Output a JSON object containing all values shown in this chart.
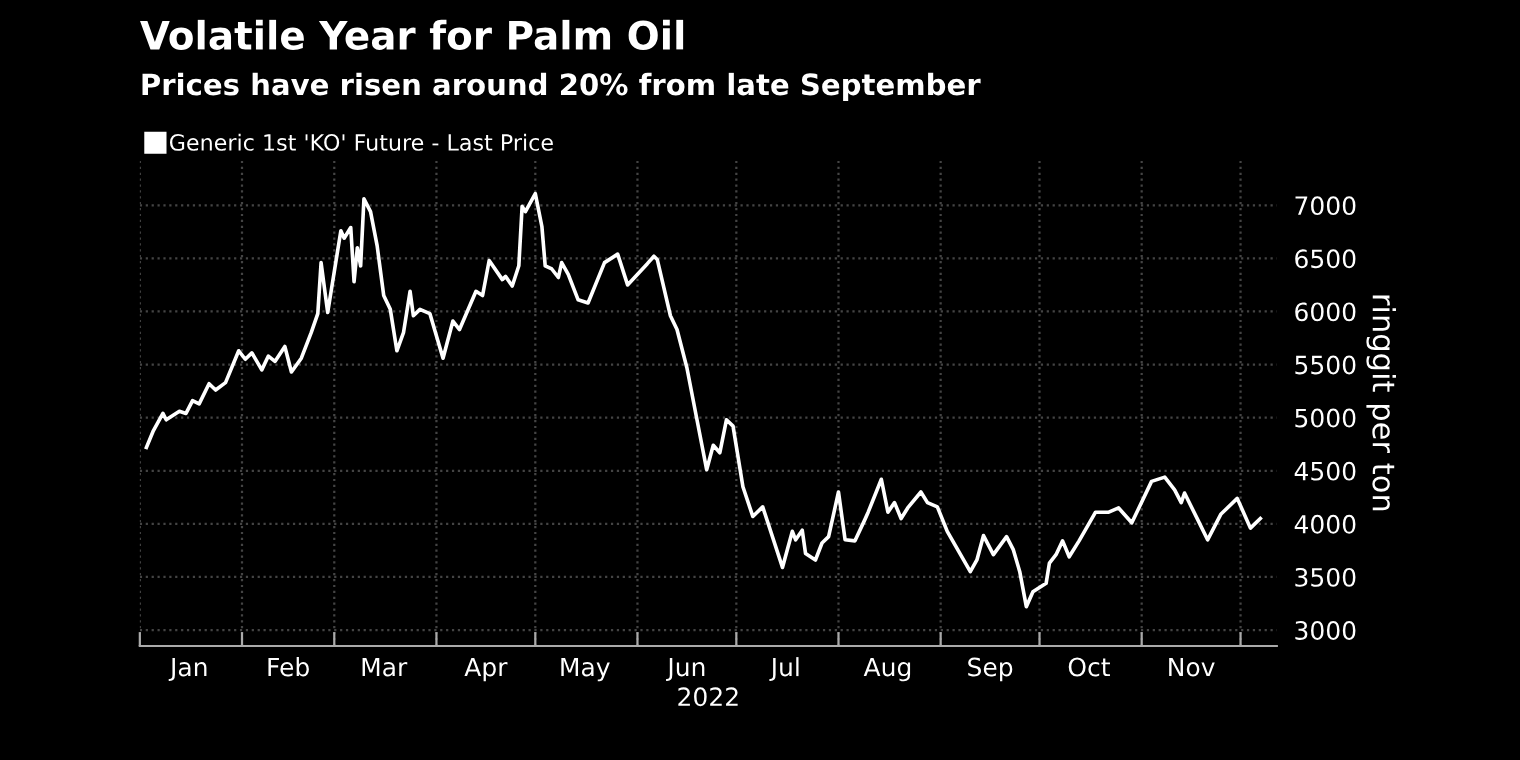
{
  "chart_data": {
    "type": "line",
    "title": "Volatile Year for Palm Oil",
    "subtitle": "Prices have risen around 20% from late September",
    "xlabel": "2022",
    "ylabel": "ringgit per ton",
    "legend": "top left",
    "grid": true,
    "marker": "none",
    "line_style": "solid",
    "xlim": [
      "2022-01-01",
      "2022-12-12"
    ],
    "ylim": [
      2850,
      7430
    ],
    "yticks": [
      3000,
      3500,
      4000,
      4500,
      5000,
      5500,
      6000,
      6500,
      7000
    ],
    "xticks": [
      {
        "value": "2022-01-01",
        "label": null
      },
      {
        "value": "2022-01-16",
        "label": "Jan"
      },
      {
        "value": "2022-02-01",
        "label": null
      },
      {
        "value": "2022-02-15",
        "label": "Feb"
      },
      {
        "value": "2022-03-01",
        "label": null
      },
      {
        "value": "2022-03-16",
        "label": "Mar"
      },
      {
        "value": "2022-04-01",
        "label": null
      },
      {
        "value": "2022-04-16",
        "label": "Apr"
      },
      {
        "value": "2022-05-01",
        "label": null
      },
      {
        "value": "2022-05-16",
        "label": "May"
      },
      {
        "value": "2022-06-01",
        "label": null
      },
      {
        "value": "2022-06-16",
        "label": "Jun"
      },
      {
        "value": "2022-07-01",
        "label": null
      },
      {
        "value": "2022-07-16",
        "label": "Jul"
      },
      {
        "value": "2022-08-01",
        "label": null
      },
      {
        "value": "2022-08-16",
        "label": "Aug"
      },
      {
        "value": "2022-09-01",
        "label": null
      },
      {
        "value": "2022-09-16",
        "label": "Sep"
      },
      {
        "value": "2022-10-01",
        "label": null
      },
      {
        "value": "2022-10-16",
        "label": "Oct"
      },
      {
        "value": "2022-11-01",
        "label": null
      },
      {
        "value": "2022-11-16",
        "label": "Nov"
      },
      {
        "value": "2022-12-01",
        "label": null
      }
    ],
    "series": [
      {
        "name": "Generic 1st 'KO' Future - Last Price",
        "color": "#ffffff",
        "x": [
          "2022-01-03",
          "2022-01-05",
          "2022-01-08",
          "2022-01-09",
          "2022-01-13",
          "2022-01-15",
          "2022-01-17",
          "2022-01-19",
          "2022-01-22",
          "2022-01-24",
          "2022-01-27",
          "2022-01-31",
          "2022-02-02",
          "2022-02-04",
          "2022-02-07",
          "2022-02-09",
          "2022-02-11",
          "2022-02-14",
          "2022-02-16",
          "2022-02-19",
          "2022-02-22",
          "2022-02-24",
          "2022-02-25",
          "2022-02-27",
          "2022-03-03",
          "2022-03-04",
          "2022-03-06",
          "2022-03-07",
          "2022-03-08",
          "2022-03-09",
          "2022-03-10",
          "2022-03-12",
          "2022-03-14",
          "2022-03-16",
          "2022-03-18",
          "2022-03-20",
          "2022-03-22",
          "2022-03-24",
          "2022-03-25",
          "2022-03-27",
          "2022-03-30",
          "2022-04-03",
          "2022-04-06",
          "2022-04-08",
          "2022-04-13",
          "2022-04-15",
          "2022-04-17",
          "2022-04-21",
          "2022-04-22",
          "2022-04-24",
          "2022-04-26",
          "2022-04-27",
          "2022-04-28",
          "2022-05-01",
          "2022-05-03",
          "2022-05-04",
          "2022-05-06",
          "2022-05-08",
          "2022-05-09",
          "2022-05-11",
          "2022-05-14",
          "2022-05-17",
          "2022-05-22",
          "2022-05-26",
          "2022-05-29",
          "2022-06-04",
          "2022-06-06",
          "2022-06-07",
          "2022-06-11",
          "2022-06-13",
          "2022-06-16",
          "2022-06-19",
          "2022-06-22",
          "2022-06-24",
          "2022-06-26",
          "2022-06-28",
          "2022-06-30",
          "2022-07-03",
          "2022-07-06",
          "2022-07-09",
          "2022-07-15",
          "2022-07-18",
          "2022-07-19",
          "2022-07-21",
          "2022-07-22",
          "2022-07-25",
          "2022-07-27",
          "2022-07-29",
          "2022-08-01",
          "2022-08-03",
          "2022-08-06",
          "2022-08-09",
          "2022-08-10",
          "2022-08-14",
          "2022-08-16",
          "2022-08-18",
          "2022-08-20",
          "2022-08-22",
          "2022-08-26",
          "2022-08-28",
          "2022-08-31",
          "2022-09-03",
          "2022-09-10",
          "2022-09-12",
          "2022-09-14",
          "2022-09-17",
          "2022-09-21",
          "2022-09-23",
          "2022-09-25",
          "2022-09-27",
          "2022-09-29",
          "2022-10-03",
          "2022-10-04",
          "2022-10-06",
          "2022-10-08",
          "2022-10-10",
          "2022-10-13",
          "2022-10-18",
          "2022-10-22",
          "2022-10-25",
          "2022-10-29",
          "2022-11-04",
          "2022-11-08",
          "2022-11-11",
          "2022-11-13",
          "2022-11-14",
          "2022-11-18",
          "2022-11-21",
          "2022-11-25",
          "2022-11-30",
          "2022-12-04",
          "2022-12-07"
        ],
        "values": [
          4720,
          4870,
          5040,
          4980,
          5060,
          5040,
          5160,
          5130,
          5320,
          5260,
          5330,
          5630,
          5550,
          5610,
          5450,
          5580,
          5530,
          5670,
          5430,
          5560,
          5800,
          5980,
          6460,
          5990,
          6760,
          6690,
          6790,
          6280,
          6600,
          6430,
          7060,
          6940,
          6620,
          6150,
          6020,
          5630,
          5800,
          6190,
          5960,
          6020,
          5980,
          5560,
          5910,
          5830,
          6190,
          6150,
          6480,
          6300,
          6330,
          6240,
          6430,
          6990,
          6940,
          7110,
          6800,
          6430,
          6400,
          6320,
          6460,
          6350,
          6110,
          6080,
          6460,
          6540,
          6250,
          6450,
          6520,
          6490,
          5960,
          5830,
          5470,
          4990,
          4510,
          4740,
          4670,
          4980,
          4920,
          4350,
          4070,
          4160,
          3590,
          3930,
          3850,
          3940,
          3720,
          3660,
          3820,
          3880,
          4300,
          3850,
          3840,
          4040,
          4110,
          4420,
          4110,
          4200,
          4050,
          4150,
          4300,
          4200,
          4160,
          3930,
          3550,
          3660,
          3890,
          3710,
          3880,
          3760,
          3550,
          3220,
          3360,
          3440,
          3630,
          3710,
          3840,
          3690,
          3840,
          4110,
          4110,
          4150,
          4010,
          4400,
          4440,
          4320,
          4200,
          4290,
          4040,
          3850,
          4090,
          4240,
          3960,
          4050
        ]
      }
    ]
  }
}
